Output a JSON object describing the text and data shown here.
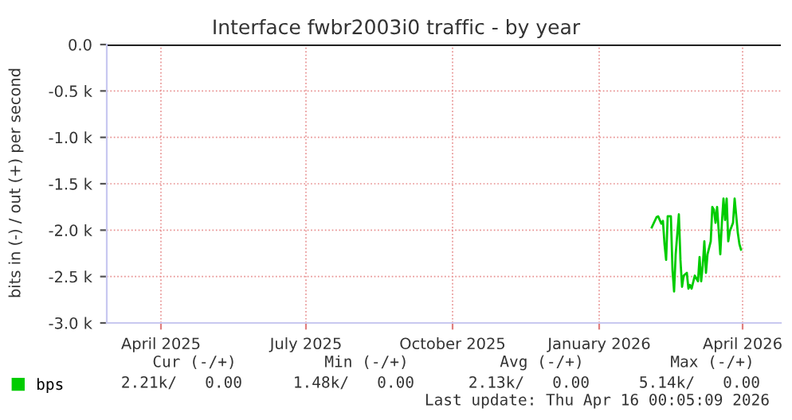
{
  "chart_data": {
    "type": "line",
    "title": "Interface fwbr2003i0 traffic - by year",
    "ylabel": "bits in (-) / out (+) per second",
    "x": [
      "2026-02-03",
      "2026-02-06",
      "2026-02-07",
      "2026-02-09",
      "2026-02-10",
      "2026-02-11",
      "2026-02-12",
      "2026-02-13",
      "2026-02-15",
      "2026-02-16",
      "2026-02-17",
      "2026-02-18",
      "2026-02-20",
      "2026-02-21",
      "2026-02-22",
      "2026-02-23",
      "2026-02-25",
      "2026-02-26",
      "2026-02-27",
      "2026-02-28",
      "2026-03-02",
      "2026-03-04",
      "2026-03-05",
      "2026-03-06",
      "2026-03-07",
      "2026-03-08",
      "2026-03-09",
      "2026-03-10",
      "2026-03-12",
      "2026-03-13",
      "2026-03-14",
      "2026-03-15",
      "2026-03-16",
      "2026-03-18",
      "2026-03-19",
      "2026-03-20",
      "2026-03-21",
      "2026-03-22",
      "2026-03-23",
      "2026-03-24",
      "2026-03-26",
      "2026-03-27",
      "2026-03-29",
      "2026-03-30",
      "2026-03-31"
    ],
    "series": [
      {
        "name": "bps",
        "color": "#00cc00",
        "values": [
          -1.97,
          -1.86,
          -1.85,
          -1.93,
          -1.9,
          -2.15,
          -2.32,
          -1.85,
          -1.85,
          -2.43,
          -2.66,
          -2.26,
          -1.83,
          -2.32,
          -2.61,
          -2.49,
          -2.46,
          -2.63,
          -2.59,
          -2.63,
          -2.49,
          -2.55,
          -2.29,
          -2.55,
          -2.38,
          -2.12,
          -2.46,
          -2.26,
          -2.12,
          -1.75,
          -1.78,
          -1.92,
          -1.75,
          -2.26,
          -1.92,
          -1.66,
          -1.89,
          -1.66,
          -2.12,
          -2.01,
          -1.92,
          -1.66,
          -2.03,
          -2.15,
          -2.21
        ]
      }
    ],
    "xlim": [
      "2025-02-26",
      "2026-04-25"
    ],
    "xticks": [
      {
        "value": "2025-04-01",
        "label": "April 2025"
      },
      {
        "value": "2025-07-01",
        "label": "July 2025"
      },
      {
        "value": "2025-10-01",
        "label": "October 2025"
      },
      {
        "value": "2026-01-01",
        "label": "January 2026"
      },
      {
        "value": "2026-04-01",
        "label": "April 2026"
      }
    ],
    "ylim": [
      -3.0,
      0.0
    ],
    "yticks": [
      {
        "value": -3.0,
        "label": "-3.0 k"
      },
      {
        "value": -2.5,
        "label": "-2.5 k"
      },
      {
        "value": -2.0,
        "label": "-2.0 k"
      },
      {
        "value": -1.5,
        "label": "-1.5 k"
      },
      {
        "value": -1.0,
        "label": "-1.0 k"
      },
      {
        "value": -0.5,
        "label": "-0.5 k"
      },
      {
        "value": 0.0,
        "label": "0.0"
      }
    ],
    "ref_lines": [
      {
        "axis": "y",
        "value": 0.0,
        "color": "#000000"
      }
    ],
    "grid": true,
    "legend": "bottom left",
    "marker": "none",
    "line_style": "solid",
    "annotations": [
      "Cur (-/+)",
      "Min (-/+)",
      "Avg (-/+)",
      "Max (-/+)",
      "2.21k/   0.00",
      "1.48k/   0.00",
      "2.13k/   0.00",
      "5.14k/   0.00",
      "Last update: Thu Apr 16 00:05:09 2026"
    ]
  }
}
